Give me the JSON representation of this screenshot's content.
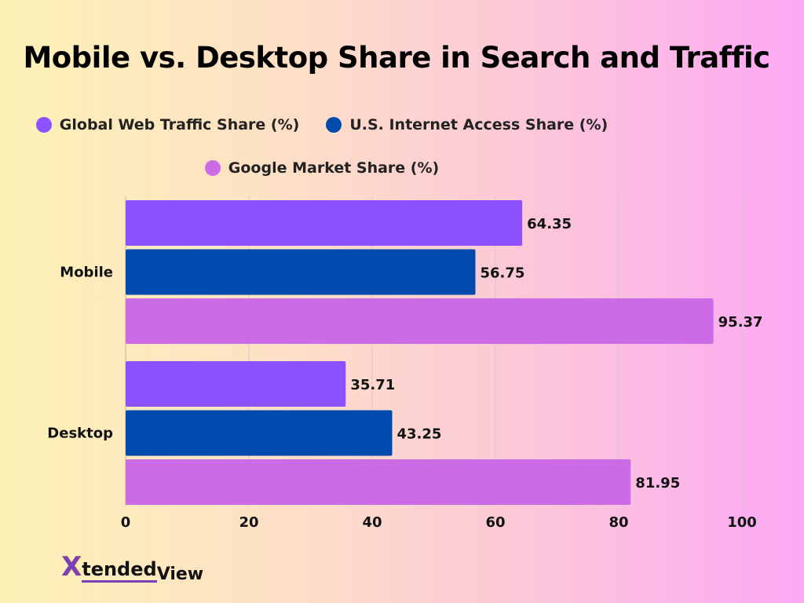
{
  "chart_data": {
    "type": "bar",
    "orientation": "horizontal",
    "title": "Mobile vs. Desktop Share in Search and Traffic",
    "categories": [
      "Mobile",
      "Desktop"
    ],
    "series": [
      {
        "name": "Global Web Traffic Share (%)",
        "color": "#8c52ff",
        "values": [
          64.35,
          35.71
        ]
      },
      {
        "name": "U.S. Internet Access Share (%)",
        "color": "#004aad",
        "values": [
          56.75,
          43.25
        ]
      },
      {
        "name": "Google Market Share (%)",
        "color": "#cb6ce6",
        "values": [
          95.37,
          81.95
        ]
      }
    ],
    "xlim": [
      0,
      100
    ],
    "xticks": [
      "0",
      "20",
      "40",
      "60",
      "80",
      "100"
    ],
    "grid": true,
    "legend": "top-center"
  },
  "logo": {
    "text": "XtendedView",
    "part1": "X",
    "part2": "tended",
    "part3": "View"
  }
}
